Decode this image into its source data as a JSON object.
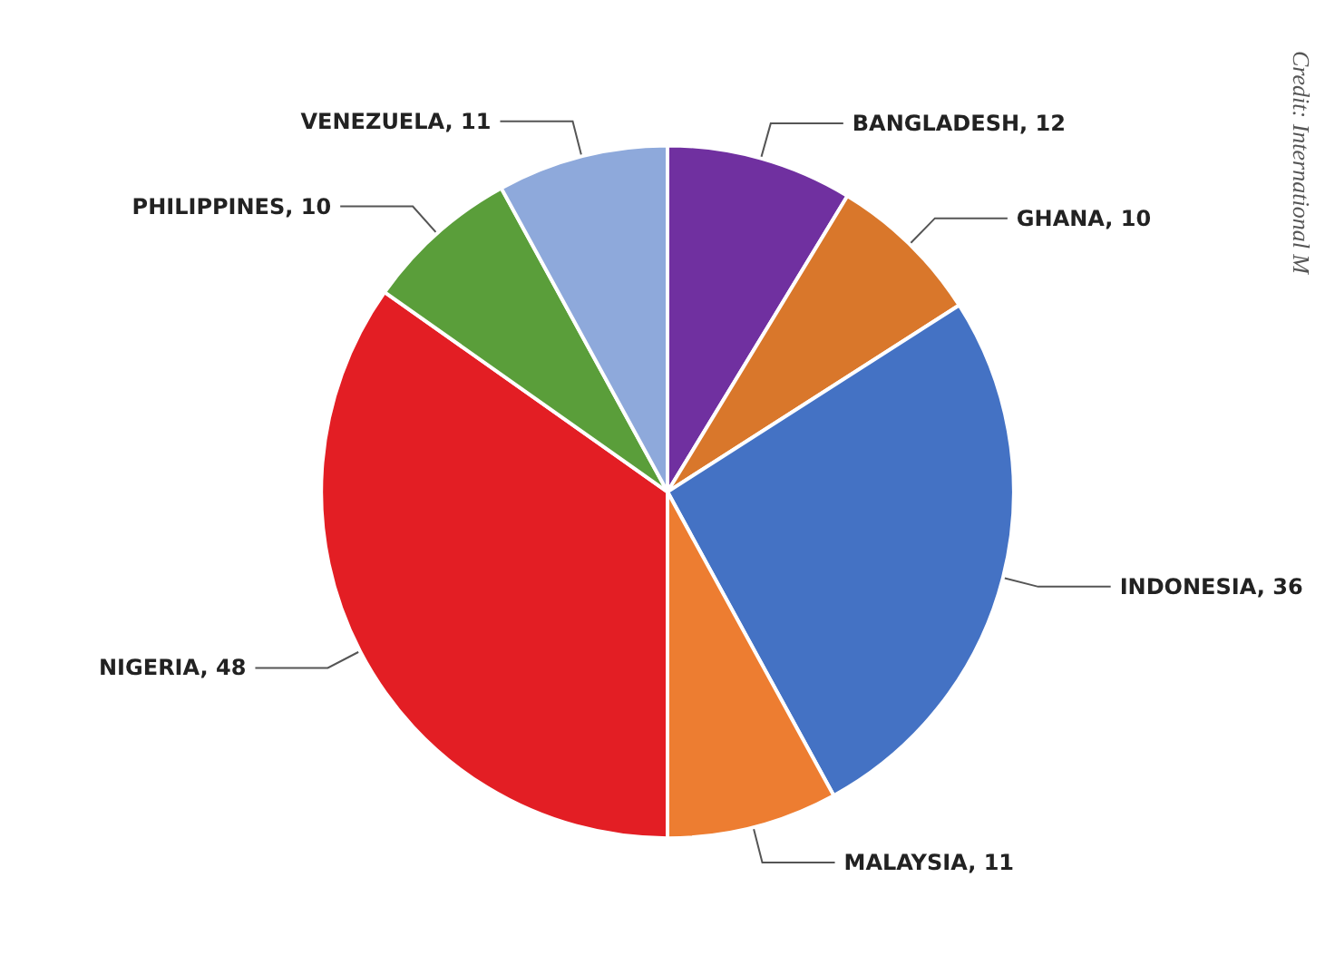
{
  "chart_data": {
    "type": "pie",
    "categories": [
      "BANGLADESH, 12",
      "GHANA, 10",
      "INDONESIA, 36",
      "MALAYSIA, 11",
      "NIGERIA, 48",
      "PHILIPPINES, 10",
      "VENEZUELA, 11"
    ],
    "values": [
      12,
      10,
      36,
      11,
      48,
      10,
      11
    ],
    "colors": [
      "#7030a0",
      "#d9772b",
      "#4472c4",
      "#ed7d31",
      "#e31e24",
      "#5a9e3a",
      "#8ea9db"
    ],
    "annotations": [
      "Credit: International M"
    ]
  }
}
